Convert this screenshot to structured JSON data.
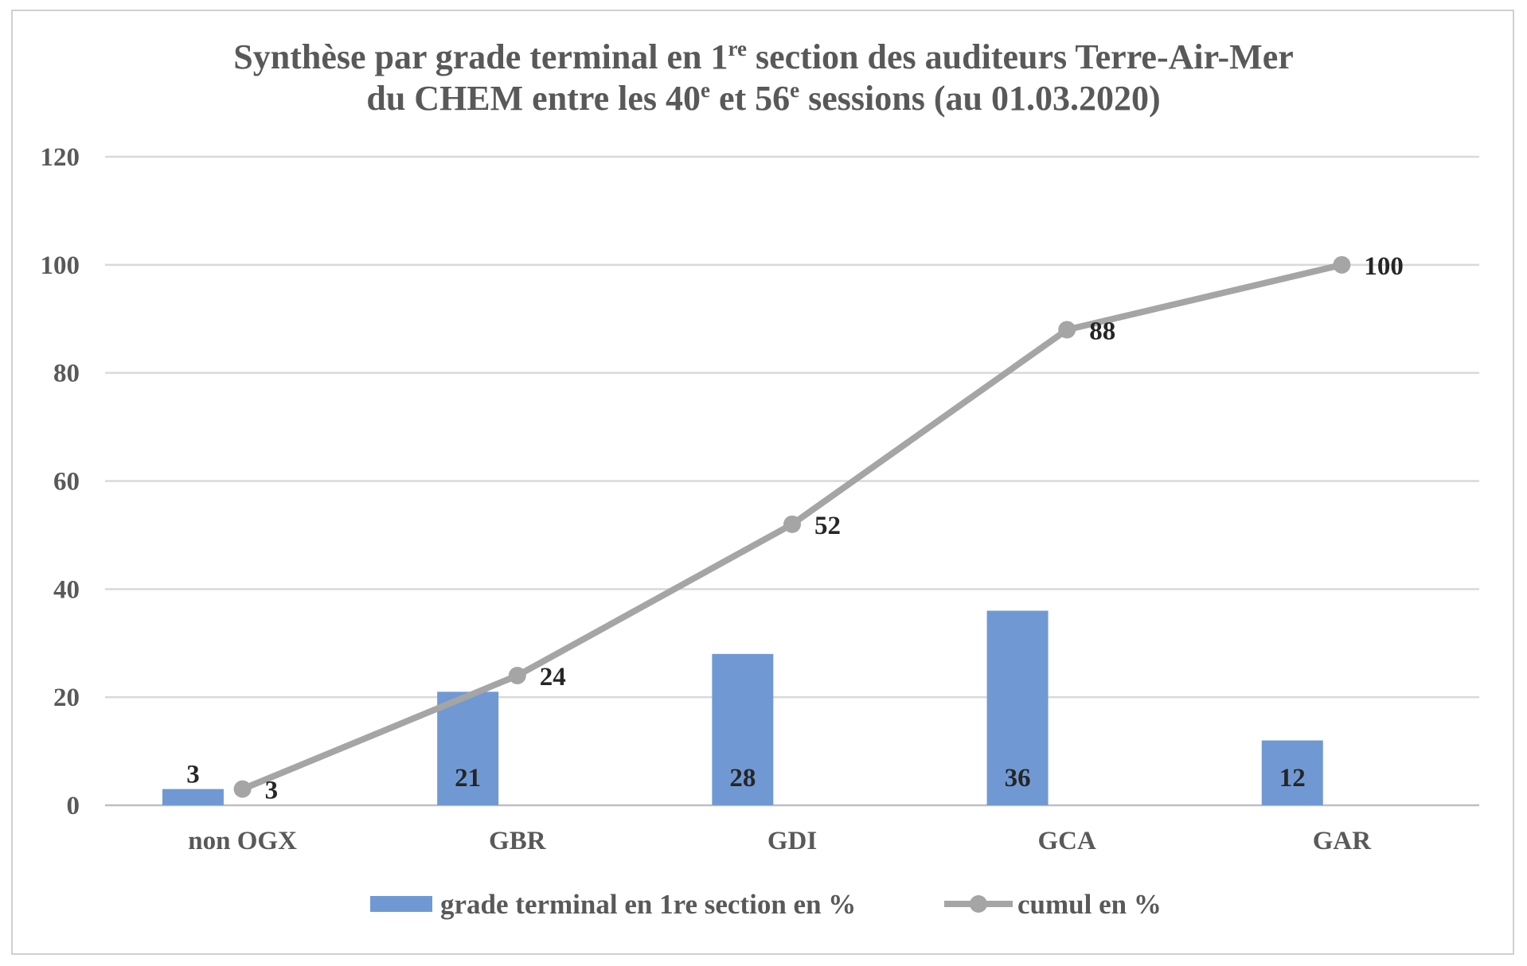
{
  "chart_data": {
    "type": "bar",
    "title": {
      "line1_a": "Synthèse par grade terminal en 1",
      "line1_sup": "re",
      "line1_b": " section des auditeurs Terre-Air-Mer",
      "line2_a": "du CHEM entre les 40",
      "line2_sup1": "e",
      "line2_b": " et 56",
      "line2_sup2": "e",
      "line2_c": " sessions (au 01.03.2020)"
    },
    "categories": [
      "non OGX",
      "GBR",
      "GDI",
      "GCA",
      "GAR"
    ],
    "ylim": [
      0,
      120
    ],
    "yticks": [
      "0",
      "20",
      "40",
      "60",
      "80",
      "100",
      "120"
    ],
    "grid": true,
    "legend_position": "bottom",
    "series": [
      {
        "name": "grade terminal en 1re section en %",
        "kind": "bar",
        "color": "#7099d3",
        "values": [
          3,
          21,
          28,
          36,
          12
        ]
      },
      {
        "name": "cumul en %",
        "kind": "line",
        "color": "#a5a5a5",
        "values": [
          3,
          24,
          52,
          88,
          100
        ]
      }
    ]
  }
}
